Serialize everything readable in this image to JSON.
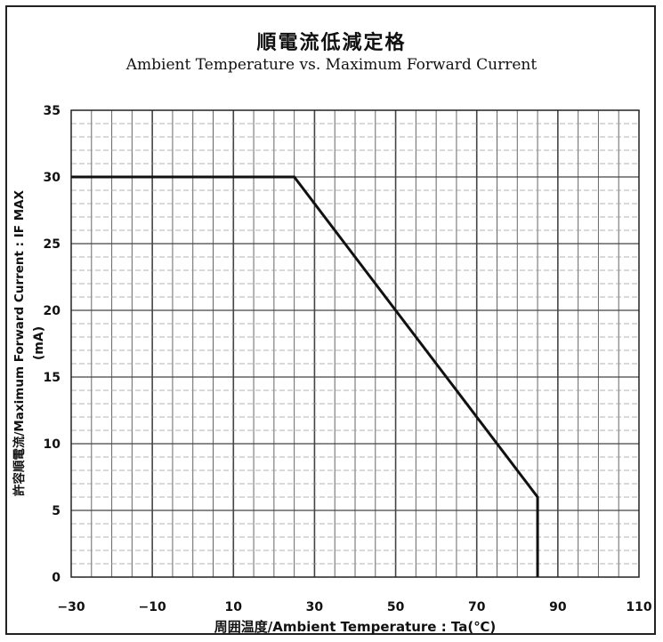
{
  "chart_data": {
    "type": "line",
    "title": "順電流低減定格",
    "subtitle": "Ambient Temperature vs. Maximum Forward Current",
    "xlabel": "周囲温度/Ambient Temperature : Ta(℃)",
    "ylabel": "許容順電流/Maximum Forward Current : IF MAX",
    "ylabel_unit": "(mA)",
    "xlim": [
      -30,
      110
    ],
    "ylim": [
      0,
      35
    ],
    "x_ticks": [
      "−30",
      "−10",
      "10",
      "30",
      "50",
      "70",
      "90",
      "110"
    ],
    "y_ticks": [
      "0",
      "5",
      "10",
      "15",
      "20",
      "25",
      "30",
      "35"
    ],
    "grid": true,
    "series": [
      {
        "x": [
          -30,
          25,
          85,
          85
        ],
        "y": [
          30,
          30,
          6,
          0
        ]
      }
    ]
  }
}
